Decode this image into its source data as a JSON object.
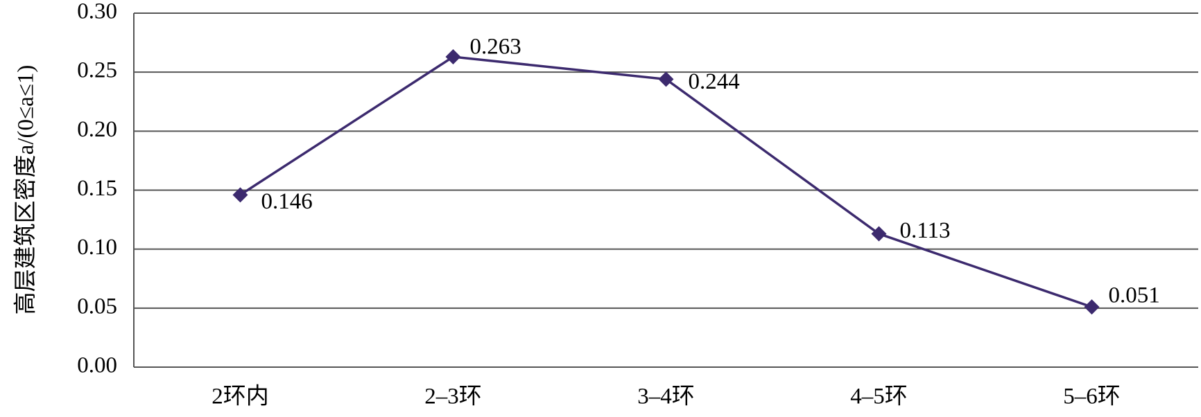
{
  "chart_data": {
    "type": "line",
    "y_label": "高层建筑区密度a/(0≤a≤1)",
    "categories": [
      "2环内",
      "2–3环",
      "3–4环",
      "4–5环",
      "5–6环"
    ],
    "series": [
      {
        "color": "#3c2a6e",
        "values": [
          0.146,
          0.263,
          0.244,
          0.113,
          0.051
        ]
      }
    ],
    "ylim": [
      0,
      0.3
    ],
    "yticks": [
      {
        "value": 0,
        "label": "0.00"
      },
      {
        "value": 0.05,
        "label": "0.05"
      },
      {
        "value": 0.1,
        "label": "0.10"
      },
      {
        "value": 0.15,
        "label": "0.15"
      },
      {
        "value": 0.2,
        "label": "0.20"
      },
      {
        "value": 0.25,
        "label": "0.25"
      },
      {
        "value": 0.3,
        "label": "0.30"
      }
    ],
    "grid": true
  }
}
